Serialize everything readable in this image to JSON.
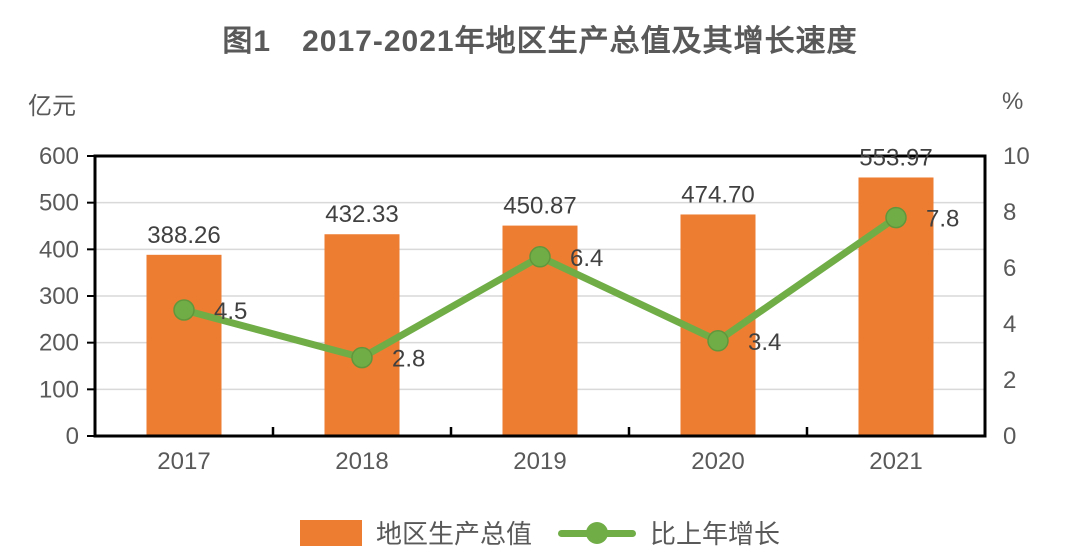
{
  "title": {
    "text": "图1　2017-2021年地区生产总值及其增长速度"
  },
  "chart_data": {
    "type": "combo",
    "categories": [
      "2017",
      "2018",
      "2019",
      "2020",
      "2021"
    ],
    "series": [
      {
        "name": "地区生产总值",
        "type": "bar",
        "axis": "left",
        "values": [
          388.26,
          432.33,
          450.87,
          474.7,
          553.97
        ],
        "labels": [
          "388.26",
          "432.33",
          "450.87",
          "474.70",
          "553.97"
        ],
        "color": "#ED7D31"
      },
      {
        "name": "比上年增长",
        "type": "line",
        "axis": "right",
        "values": [
          4.5,
          2.8,
          6.4,
          3.4,
          7.8
        ],
        "labels": [
          "4.5",
          "2.8",
          "6.4",
          "3.4",
          "7.8"
        ],
        "color": "#70AD47",
        "marker_stroke": "#61973C"
      }
    ],
    "left_axis": {
      "label": "亿元",
      "min": 0,
      "max": 600,
      "step": 100,
      "ticks": [
        600,
        500,
        400,
        300,
        200,
        100,
        0
      ]
    },
    "right_axis": {
      "label": "%",
      "min": 0,
      "max": 10,
      "step": 2,
      "ticks": [
        10,
        8,
        6,
        4,
        2,
        0
      ]
    },
    "grid": true,
    "legend_position": "bottom",
    "colors": {
      "plot_border": "#000000",
      "gridline": "#D9D9D9",
      "axis_text": "#595959",
      "data_label_text": "#404040"
    }
  }
}
